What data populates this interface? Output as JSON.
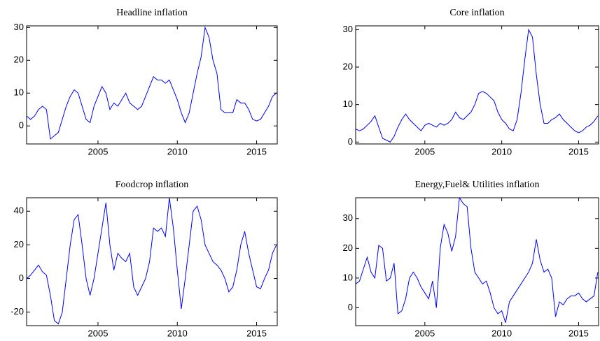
{
  "chart_data": [
    {
      "type": "line",
      "title": "Headline inflation",
      "color": "#0000ff",
      "x": [
        2000.5,
        2000.75,
        2001,
        2001.25,
        2001.5,
        2001.75,
        2002,
        2002.25,
        2002.5,
        2002.75,
        2003,
        2003.25,
        2003.5,
        2003.75,
        2004,
        2004.25,
        2004.5,
        2004.75,
        2005,
        2005.25,
        2005.5,
        2005.75,
        2006,
        2006.25,
        2006.5,
        2006.75,
        2007,
        2007.25,
        2007.5,
        2007.75,
        2008,
        2008.25,
        2008.5,
        2008.75,
        2009,
        2009.25,
        2009.5,
        2009.75,
        2010,
        2010.25,
        2010.5,
        2010.75,
        2011,
        2011.25,
        2011.5,
        2011.75,
        2012,
        2012.25,
        2012.5,
        2012.75,
        2013,
        2013.25,
        2013.5,
        2013.75,
        2014,
        2014.25,
        2014.5,
        2014.75,
        2015,
        2015.25,
        2015.5,
        2015.75,
        2016,
        2016.25
      ],
      "values": [
        3,
        2,
        3,
        5,
        6,
        5,
        -4,
        -3,
        -2,
        2,
        6,
        9,
        11,
        10,
        6,
        2,
        1,
        6,
        9,
        12,
        10,
        5,
        7,
        6,
        8,
        10,
        7,
        6,
        5,
        6,
        9,
        12,
        15,
        14,
        14,
        13,
        14,
        11,
        8,
        4,
        1,
        4,
        10,
        16,
        21,
        30,
        27,
        20,
        16,
        5,
        4,
        4,
        4,
        8,
        7,
        7,
        5,
        2,
        1.5,
        2,
        4,
        6,
        9,
        10
      ],
      "xlim": [
        2000.5,
        2016.3
      ],
      "xticks": [
        2005,
        2010,
        2015
      ],
      "ylim": [
        -5.5,
        30.5
      ],
      "yticks": [
        0,
        10,
        20,
        30
      ]
    },
    {
      "type": "line",
      "title": "Core inflation",
      "color": "#0000ff",
      "x": [
        2000.5,
        2000.75,
        2001,
        2001.25,
        2001.5,
        2001.75,
        2002,
        2002.25,
        2002.5,
        2002.75,
        2003,
        2003.25,
        2003.5,
        2003.75,
        2004,
        2004.25,
        2004.5,
        2004.75,
        2005,
        2005.25,
        2005.5,
        2005.75,
        2006,
        2006.25,
        2006.5,
        2006.75,
        2007,
        2007.25,
        2007.5,
        2007.75,
        2008,
        2008.25,
        2008.5,
        2008.75,
        2009,
        2009.25,
        2009.5,
        2009.75,
        2010,
        2010.25,
        2010.5,
        2010.75,
        2011,
        2011.25,
        2011.5,
        2011.75,
        2012,
        2012.25,
        2012.5,
        2012.75,
        2013,
        2013.25,
        2013.5,
        2013.75,
        2014,
        2014.25,
        2014.5,
        2014.75,
        2015,
        2015.25,
        2015.5,
        2015.75,
        2016,
        2016.25
      ],
      "values": [
        3.5,
        3,
        3.5,
        4.5,
        5.5,
        7,
        4,
        1,
        0.5,
        0,
        1.5,
        4,
        6,
        7.5,
        6,
        5,
        4,
        3,
        4.5,
        5,
        4.5,
        4,
        5,
        4.5,
        5,
        6,
        8,
        6.5,
        6,
        7,
        8,
        10,
        13,
        13.5,
        13,
        12,
        11,
        8,
        6,
        5,
        3.5,
        3,
        6,
        13,
        22,
        30,
        28,
        18,
        10,
        5,
        5,
        6,
        6.5,
        7.5,
        6,
        5,
        4,
        3,
        2.5,
        3,
        4,
        4.5,
        5.5,
        7
      ],
      "xlim": [
        2000.5,
        2016.3
      ],
      "xticks": [
        2005,
        2010,
        2015
      ],
      "ylim": [
        -0.5,
        31
      ],
      "yticks": [
        0,
        10,
        20,
        30
      ]
    },
    {
      "type": "line",
      "title": "Foodcrop inflation",
      "color": "#0000ff",
      "x": [
        2000.5,
        2000.75,
        2001,
        2001.25,
        2001.5,
        2001.75,
        2002,
        2002.25,
        2002.5,
        2002.75,
        2003,
        2003.25,
        2003.5,
        2003.75,
        2004,
        2004.25,
        2004.5,
        2004.75,
        2005,
        2005.25,
        2005.5,
        2005.75,
        2006,
        2006.25,
        2006.5,
        2006.75,
        2007,
        2007.25,
        2007.5,
        2007.75,
        2008,
        2008.25,
        2008.5,
        2008.75,
        2009,
        2009.25,
        2009.5,
        2009.75,
        2010,
        2010.25,
        2010.5,
        2010.75,
        2011,
        2011.25,
        2011.5,
        2011.75,
        2012,
        2012.25,
        2012.5,
        2012.75,
        2013,
        2013.25,
        2013.5,
        2013.75,
        2014,
        2014.25,
        2014.5,
        2014.75,
        2015,
        2015.25,
        2015.5,
        2015.75,
        2016,
        2016.25
      ],
      "values": [
        0,
        2,
        5,
        8,
        4,
        2,
        -10,
        -25,
        -27,
        -20,
        0,
        20,
        35,
        38,
        20,
        0,
        -10,
        0,
        15,
        30,
        45,
        20,
        5,
        15,
        12,
        10,
        15,
        -5,
        -10,
        -5,
        0,
        10,
        30,
        28,
        30,
        25,
        48,
        30,
        5,
        -18,
        0,
        20,
        40,
        43,
        35,
        20,
        15,
        10,
        8,
        5,
        0,
        -8,
        -5,
        5,
        20,
        28,
        15,
        5,
        -5,
        -6,
        0,
        5,
        15,
        20
      ],
      "xlim": [
        2000.5,
        2016.3
      ],
      "xticks": [
        2005,
        2010,
        2015
      ],
      "ylim": [
        -28,
        48
      ],
      "yticks": [
        -20,
        0,
        20,
        40
      ]
    },
    {
      "type": "line",
      "title": "Energy,Fuel& Utilities inflation",
      "color": "#0000ff",
      "x": [
        2000.5,
        2000.75,
        2001,
        2001.25,
        2001.5,
        2001.75,
        2002,
        2002.25,
        2002.5,
        2002.75,
        2003,
        2003.25,
        2003.5,
        2003.75,
        2004,
        2004.25,
        2004.5,
        2004.75,
        2005,
        2005.25,
        2005.5,
        2005.75,
        2006,
        2006.25,
        2006.5,
        2006.75,
        2007,
        2007.25,
        2007.5,
        2007.75,
        2008,
        2008.25,
        2008.5,
        2008.75,
        2009,
        2009.25,
        2009.5,
        2009.75,
        2010,
        2010.25,
        2010.5,
        2010.75,
        2011,
        2011.25,
        2011.5,
        2011.75,
        2012,
        2012.25,
        2012.5,
        2012.75,
        2013,
        2013.25,
        2013.5,
        2013.75,
        2014,
        2014.25,
        2014.5,
        2014.75,
        2015,
        2015.25,
        2015.5,
        2015.75,
        2016,
        2016.25
      ],
      "values": [
        8,
        9,
        13,
        17,
        12,
        10,
        21,
        20,
        9,
        10,
        15,
        -2,
        -1,
        3,
        10,
        12,
        10,
        7,
        5,
        3,
        9,
        0,
        20,
        28,
        25,
        19,
        24,
        37,
        35,
        34,
        20,
        12,
        10,
        8,
        9,
        5,
        0,
        -2,
        -1,
        -5,
        2,
        4,
        6,
        8,
        10,
        12,
        15,
        23,
        16,
        12,
        13,
        10,
        -3,
        2,
        1,
        3,
        4,
        4,
        5,
        3,
        2,
        3,
        4,
        12
      ],
      "xlim": [
        2000.5,
        2016.3
      ],
      "xticks": [
        2005,
        2010,
        2015
      ],
      "ylim": [
        -6,
        37
      ],
      "yticks": [
        0,
        10,
        20,
        30
      ]
    }
  ]
}
